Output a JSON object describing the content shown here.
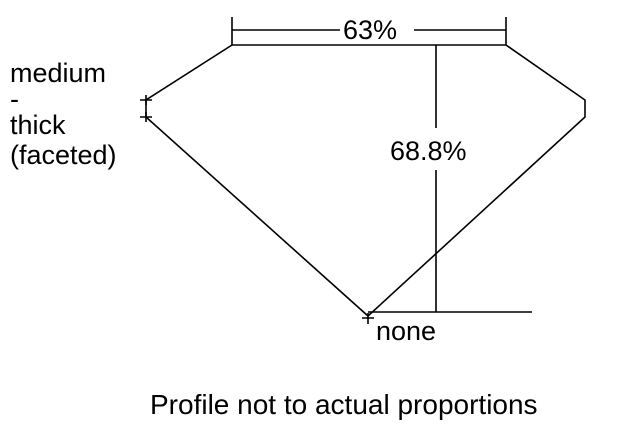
{
  "diagram": {
    "table_percent": "63%",
    "depth_percent": "68.8%",
    "girdle_label_lines": [
      "medium",
      "-",
      "thick",
      "(faceted)"
    ],
    "culet_label": "none",
    "caption": "Profile not to actual proportions",
    "line_color": "#000000",
    "background": "#ffffff"
  }
}
